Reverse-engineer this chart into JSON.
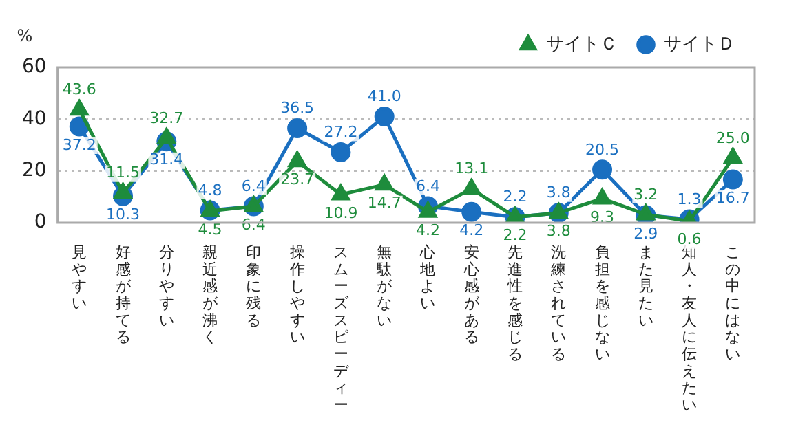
{
  "chart_data": {
    "type": "line",
    "ylabel": "%",
    "categories": [
      "見やすい",
      "好感が持てる",
      "分りやすい",
      "親近感が沸く",
      "印象に残る",
      "操作しやすい",
      "スムーズスピーディー",
      "無駄がない",
      "心地よい",
      "安心感がある",
      "先進性を感じる",
      "洗練されている",
      "負担を感じない",
      "また見たい",
      "知人・友人に伝えたい",
      "この中にはない"
    ],
    "series": [
      {
        "name": "サイトＣ",
        "color": "#1e8c3c",
        "marker": "triangle",
        "values": [
          43.6,
          11.5,
          32.7,
          4.5,
          6.4,
          23.7,
          10.9,
          14.7,
          4.2,
          13.1,
          2.2,
          3.8,
          9.3,
          3.2,
          0.6,
          25.0
        ],
        "value_labels": [
          "43.6",
          "11.5",
          "32.7",
          "4.5",
          "6.4",
          "23.7",
          "10.9",
          "14.7",
          "4.2",
          "13.1",
          "2.2",
          "3.8",
          "9.3",
          "3.2",
          "0.6",
          "25.0"
        ]
      },
      {
        "name": "サイトＤ",
        "color": "#1a6fc0",
        "marker": "circle",
        "values": [
          37.2,
          10.3,
          31.4,
          4.8,
          6.4,
          36.5,
          27.2,
          41.0,
          6.4,
          4.2,
          2.2,
          3.8,
          20.5,
          2.9,
          1.3,
          16.7
        ],
        "value_labels": [
          "37.2",
          "10.3",
          "31.4",
          "4.8",
          "6.4",
          "36.5",
          "27.2",
          "41.0",
          "6.4",
          "4.2",
          "2.2",
          "3.8",
          "20.5",
          "2.9",
          "1.3",
          "16.7"
        ]
      }
    ],
    "ylim": [
      0,
      60
    ],
    "yticks": [
      0,
      20,
      40,
      60
    ],
    "grid": "y",
    "legend": "top right",
    "line_style": "solid"
  }
}
